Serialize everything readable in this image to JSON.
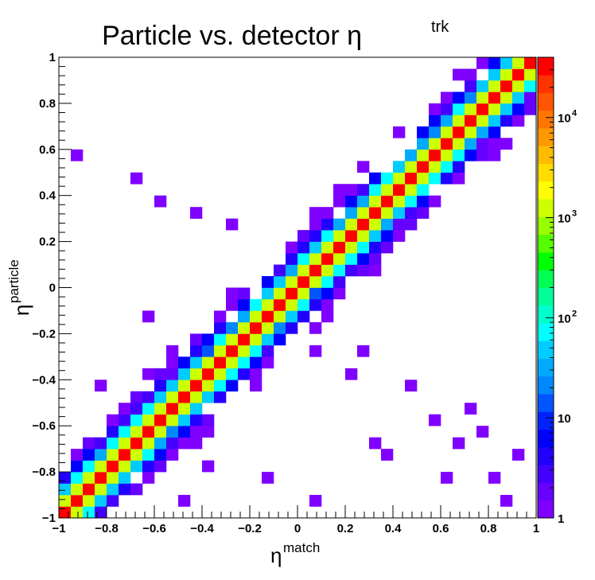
{
  "chart_data": {
    "type": "heatmap",
    "title": "Particle vs. detector η",
    "title_superscript": "trk",
    "xlabel": "η",
    "xlabel_superscript": "match",
    "ylabel": "η",
    "ylabel_superscript": "particle",
    "xlim": [
      -1,
      1
    ],
    "ylim": [
      -1,
      1
    ],
    "bins_x": 40,
    "bins_y": 40,
    "x_ticks": [
      "−1",
      "−0.8",
      "−0.6",
      "−0.4",
      "−0.2",
      "0",
      "0.2",
      "0.4",
      "0.6",
      "0.8",
      "1"
    ],
    "y_ticks": [
      "−1",
      "−0.8",
      "−0.6",
      "−0.4",
      "−0.2",
      "0",
      "0.2",
      "0.4",
      "0.6",
      "0.8",
      "1"
    ],
    "colorbar": {
      "scale": "log",
      "range": [
        1,
        40000
      ],
      "tick_values": [
        1,
        10,
        100,
        1000,
        10000
      ],
      "tick_labels": [
        {
          "base": "1",
          "exp": ""
        },
        {
          "base": "10",
          "exp": ""
        },
        {
          "base": "10",
          "exp": "2"
        },
        {
          "base": "10",
          "exp": "3"
        },
        {
          "base": "10",
          "exp": "4"
        }
      ]
    },
    "grid": false,
    "palette": [
      "#7f00ff",
      "#6600ff",
      "#4400ff",
      "#2200ff",
      "#0000ff",
      "#0022ff",
      "#0055ff",
      "#0088ff",
      "#00aaff",
      "#00ccff",
      "#00ffff",
      "#00ffcc",
      "#00ff99",
      "#00ff55",
      "#00ff00",
      "#55ff00",
      "#99ff00",
      "#ccff00",
      "#ffff00",
      "#ffdd00",
      "#ffbb00",
      "#ff9900",
      "#ff7700",
      "#ff5500",
      "#ff3300",
      "#ff0000"
    ],
    "cell_counts_description": "counts concentrated along the diagonal x=y (~40000 per bin), falling off within a few bins; sparse single-count bins scattered near the band",
    "diagonal_peak": 40000,
    "falloff": [
      40000,
      1500,
      40,
      6,
      2,
      1
    ],
    "outliers": [
      [
        -0.9,
        0.55
      ],
      [
        -0.7,
        0.45
      ],
      [
        -0.6,
        0.35
      ],
      [
        -0.45,
        0.3
      ],
      [
        -0.3,
        0.25
      ],
      [
        -0.65,
        -0.15
      ],
      [
        -0.8,
        -0.45
      ],
      [
        -0.75,
        -0.55
      ],
      [
        -0.55,
        -0.6
      ],
      [
        -0.5,
        -0.9
      ],
      [
        -0.45,
        -0.65
      ],
      [
        -0.9,
        -0.75
      ],
      [
        -0.4,
        -0.78
      ],
      [
        -0.15,
        -0.8
      ],
      [
        0.05,
        -0.95
      ],
      [
        0.3,
        -0.7
      ],
      [
        0.35,
        -0.75
      ],
      [
        0.55,
        -0.6
      ],
      [
        0.65,
        -0.7
      ],
      [
        0.75,
        -0.65
      ],
      [
        0.8,
        -0.85
      ],
      [
        0.9,
        -0.75
      ],
      [
        0.2,
        -0.4
      ],
      [
        0.25,
        -0.3
      ],
      [
        0.45,
        -0.45
      ],
      [
        0.62,
        -0.85
      ],
      [
        0.7,
        -0.55
      ],
      [
        0.85,
        -0.9
      ],
      [
        0.05,
        -0.3
      ]
    ]
  }
}
